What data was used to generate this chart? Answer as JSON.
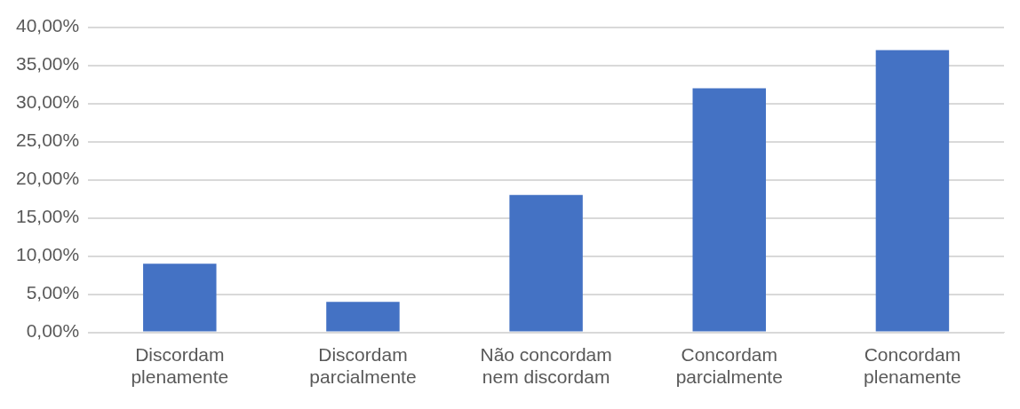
{
  "chart_data": {
    "type": "bar",
    "categories": [
      "Discordam plenamente",
      "Discordam parcialmente",
      "Não concordam nem discordam",
      "Concordam parcialmente",
      "Concordam plenamente"
    ],
    "values": [
      9,
      4,
      18,
      32,
      37
    ],
    "color": "#4472c4",
    "ylim": [
      0,
      40
    ],
    "yticks": [
      {
        "value": 0,
        "label": "0,00%"
      },
      {
        "value": 5,
        "label": "5,00%"
      },
      {
        "value": 10,
        "label": "10,00%"
      },
      {
        "value": 15,
        "label": "15,00%"
      },
      {
        "value": 20,
        "label": "20,00%"
      },
      {
        "value": 25,
        "label": "25,00%"
      },
      {
        "value": 30,
        "label": "30,00%"
      },
      {
        "value": 35,
        "label": "35,00%"
      },
      {
        "value": 40,
        "label": "40,00%"
      }
    ],
    "grid": "y",
    "legend": false
  }
}
